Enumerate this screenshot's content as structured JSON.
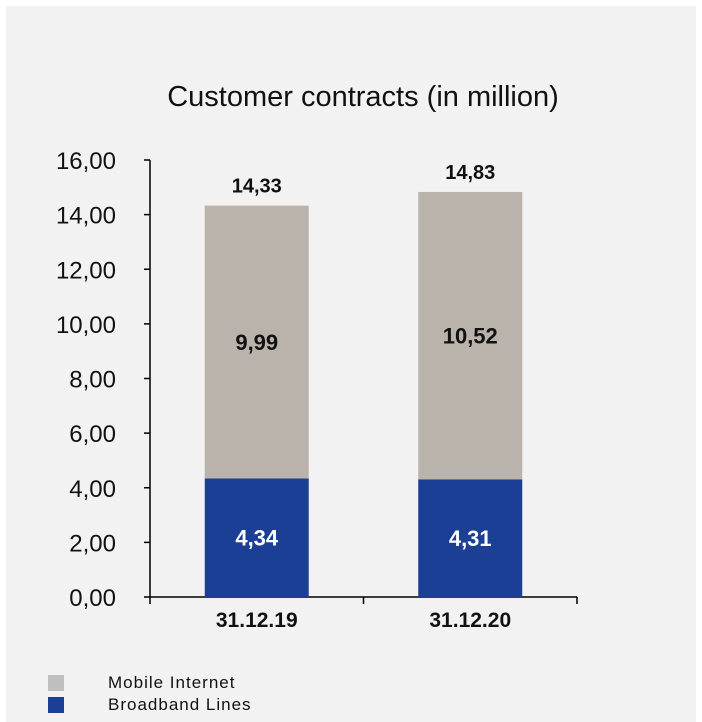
{
  "chart_data": {
    "type": "bar",
    "stacked": true,
    "title": "Customer contracts (in million)",
    "categories": [
      "31.12.19",
      "31.12.20"
    ],
    "series": [
      {
        "name": "Broadband Lines",
        "values": [
          4.34,
          4.31
        ],
        "labels": [
          "4,34",
          "4,31"
        ],
        "color": "#1b3f94"
      },
      {
        "name": "Mobile Internet",
        "values": [
          9.99,
          10.52
        ],
        "labels": [
          "9,99",
          "10,52"
        ],
        "color": "#bab3ab"
      }
    ],
    "totals": [
      14.33,
      14.83
    ],
    "total_labels": [
      "14,33",
      "14,83"
    ],
    "ylim": [
      0,
      16
    ],
    "yticks": [
      0,
      2,
      4,
      6,
      8,
      10,
      12,
      14,
      16
    ],
    "ytick_labels": [
      "0,00",
      "2,00",
      "4,00",
      "6,00",
      "8,00",
      "10,00",
      "12,00",
      "14,00",
      "16,00"
    ],
    "xlabel": "",
    "ylabel": "",
    "grid": false,
    "legend": {
      "position": "bottom-left",
      "entries": [
        {
          "label": "Mobile Internet",
          "color": "#bfbfbf"
        },
        {
          "label": "Broadband Lines",
          "color": "#1b3f94"
        }
      ]
    }
  }
}
